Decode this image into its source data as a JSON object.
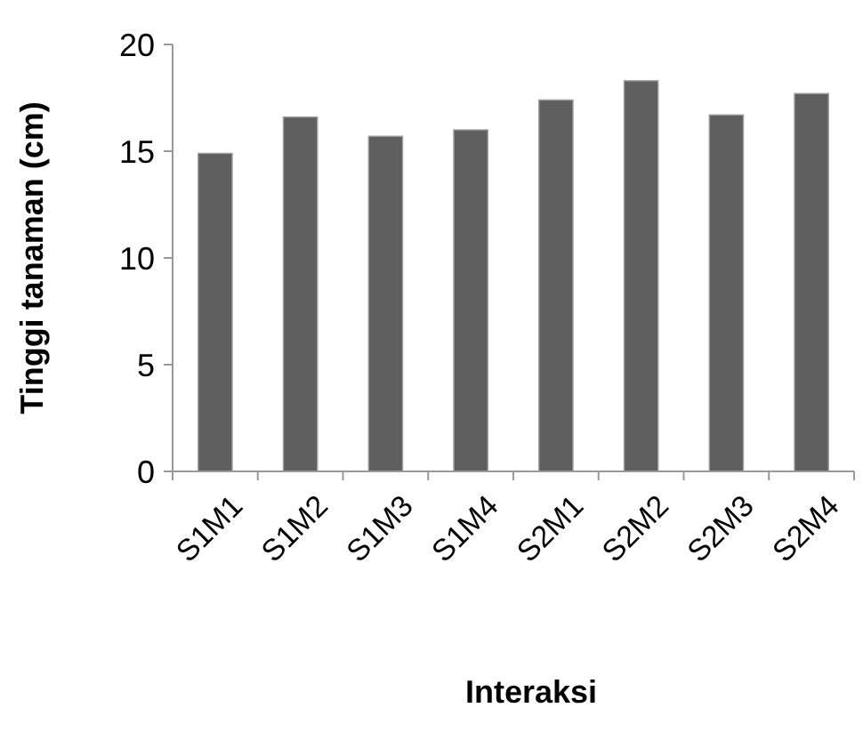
{
  "chart_data": {
    "type": "bar",
    "xlabel": "Interaksi",
    "ylabel": "Tinggi tanaman (cm)",
    "categories": [
      "S1M1",
      "S1M2",
      "S1M3",
      "S1M4",
      "S2M1",
      "S2M2",
      "S2M3",
      "S2M4"
    ],
    "values": [
      14.9,
      16.6,
      15.7,
      16.0,
      17.4,
      18.3,
      16.7,
      17.7
    ],
    "color": "#5f5f5f",
    "ylim": [
      0,
      20
    ],
    "yticks": [
      0,
      5,
      10,
      15,
      20
    ],
    "grid": false
  }
}
